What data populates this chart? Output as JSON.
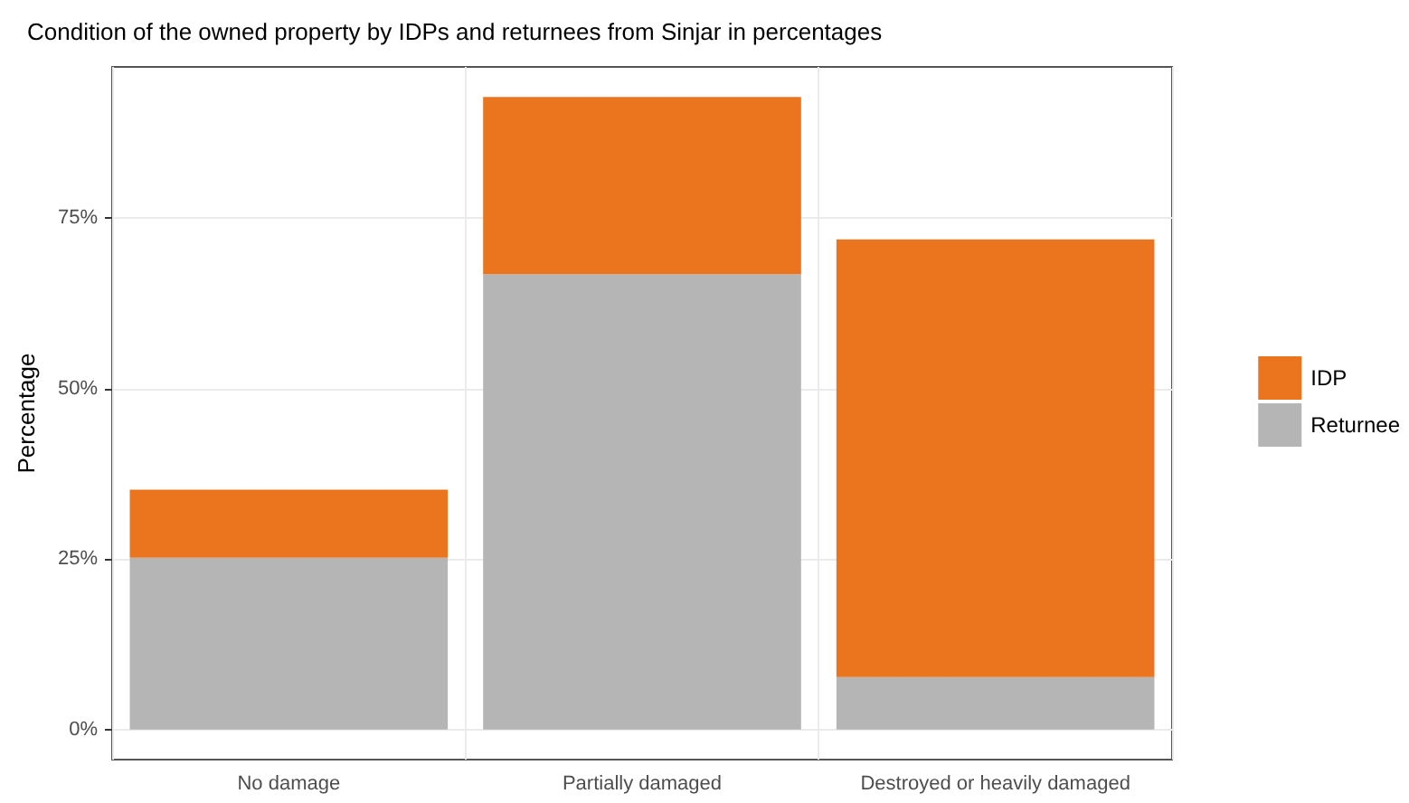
{
  "chart_data": {
    "type": "bar",
    "title": "Condition of the owned property by IDPs and returnees from Sinjar in percentages",
    "ylabel": "Percentage",
    "categories": [
      "No damage",
      "Partially damaged",
      "Destroyed or heavily damaged"
    ],
    "series": [
      {
        "name": "Returnee",
        "color": "#b5b5b5",
        "values": [
          25.2,
          66.8,
          7.7
        ]
      },
      {
        "name": "IDP",
        "color": "#eb741f",
        "values": [
          10.0,
          26.0,
          64.2
        ]
      }
    ],
    "stacked": true,
    "ylim": [
      -4.4,
      97.2
    ],
    "yticks": [
      {
        "value": 0,
        "label": "0%"
      },
      {
        "value": 25,
        "label": "25%"
      },
      {
        "value": 50,
        "label": "50%"
      },
      {
        "value": 75,
        "label": "75%"
      }
    ],
    "grid": true,
    "legend": "right"
  }
}
